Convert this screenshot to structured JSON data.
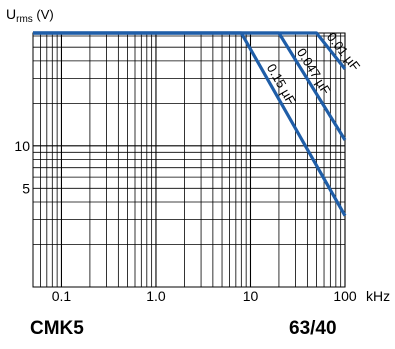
{
  "chart_data": {
    "type": "line",
    "ylabel": {
      "main": "U",
      "sub": "rms",
      "unit": "(V)"
    },
    "xunit": "kHz",
    "x_scale": "log",
    "y_scale": "log",
    "xlim": [
      0.05,
      100
    ],
    "ylim": [
      1,
      63
    ],
    "x_ticks": [
      {
        "value": 0.1,
        "label": "0.1"
      },
      {
        "value": 1,
        "label": "1.0"
      },
      {
        "value": 10,
        "label": "10"
      },
      {
        "value": 100,
        "label": "100"
      }
    ],
    "y_ticks": [
      {
        "value": 10,
        "label": "10"
      },
      {
        "value": 5,
        "label": "5"
      }
    ],
    "grid": true,
    "series": [
      {
        "name": "0.01 µF",
        "points": [
          [
            0.05,
            63
          ],
          [
            50,
            63
          ],
          [
            100,
            35
          ]
        ]
      },
      {
        "name": "0.047 µF",
        "points": [
          [
            0.05,
            63
          ],
          [
            20,
            63
          ],
          [
            100,
            11
          ]
        ]
      },
      {
        "name": "0.15 µF",
        "points": [
          [
            0.05,
            63
          ],
          [
            8,
            63
          ],
          [
            100,
            3.2
          ]
        ]
      }
    ]
  },
  "footer": {
    "left": "CMK5",
    "right": "63/40"
  },
  "colors": {
    "curve": "#1f5ea8",
    "grid": "#000000"
  }
}
